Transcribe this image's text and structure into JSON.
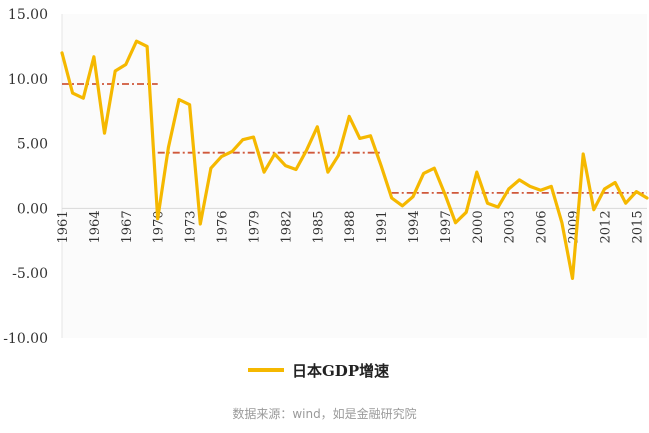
{
  "chart_data": {
    "type": "line",
    "title": "",
    "xlabel": "",
    "ylabel": "",
    "ylim": [
      -10,
      15
    ],
    "yticks": [
      "15.00",
      "10.00",
      "5.00",
      "0.00",
      "-5.00",
      "-10.00"
    ],
    "ytick_values": [
      15,
      10,
      5,
      0,
      -5,
      -10
    ],
    "xticks": [
      "1961",
      "1964",
      "1967",
      "1970",
      "1973",
      "1976",
      "1979",
      "1982",
      "1985",
      "1988",
      "1991",
      "1994",
      "1997",
      "2000",
      "2003",
      "2006",
      "2009",
      "2012",
      "2015"
    ],
    "grid": false,
    "legend": "bottom-center",
    "series": [
      {
        "name": "日本GDP增速",
        "color": "#f5b800",
        "x": [
          1961,
          1962,
          1963,
          1964,
          1965,
          1966,
          1967,
          1968,
          1969,
          1970,
          1971,
          1972,
          1973,
          1974,
          1975,
          1976,
          1977,
          1978,
          1979,
          1980,
          1981,
          1982,
          1983,
          1984,
          1985,
          1986,
          1987,
          1988,
          1989,
          1990,
          1991,
          1992,
          1993,
          1994,
          1995,
          1996,
          1997,
          1998,
          1999,
          2000,
          2001,
          2002,
          2003,
          2004,
          2005,
          2006,
          2007,
          2008,
          2009,
          2010,
          2011,
          2012,
          2013,
          2014,
          2015,
          2016
        ],
        "values": [
          12.0,
          8.9,
          8.5,
          11.7,
          5.8,
          10.6,
          11.1,
          12.9,
          12.5,
          -0.8,
          4.7,
          8.4,
          8.0,
          -1.2,
          3.1,
          4.0,
          4.4,
          5.3,
          5.5,
          2.8,
          4.2,
          3.3,
          3.0,
          4.5,
          6.3,
          2.8,
          4.1,
          7.1,
          5.4,
          5.6,
          3.3,
          0.8,
          0.2,
          0.9,
          2.7,
          3.1,
          1.1,
          -1.1,
          -0.3,
          2.8,
          0.4,
          0.1,
          1.5,
          2.2,
          1.7,
          1.4,
          1.7,
          -1.1,
          -5.4,
          4.2,
          -0.1,
          1.5,
          2.0,
          0.4,
          1.3,
          0.8
        ]
      }
    ],
    "average_lines": [
      {
        "from": 1961,
        "to": 1970,
        "value": 9.6,
        "color": "#d0583a"
      },
      {
        "from": 1970,
        "to": 1991,
        "value": 4.3,
        "color": "#d0583a"
      },
      {
        "from": 1992,
        "to": 2016,
        "value": 1.2,
        "color": "#d0583a"
      }
    ]
  },
  "legend_label": "日本GDP增速",
  "source_text": "数据来源：wind，如是金融研究院"
}
